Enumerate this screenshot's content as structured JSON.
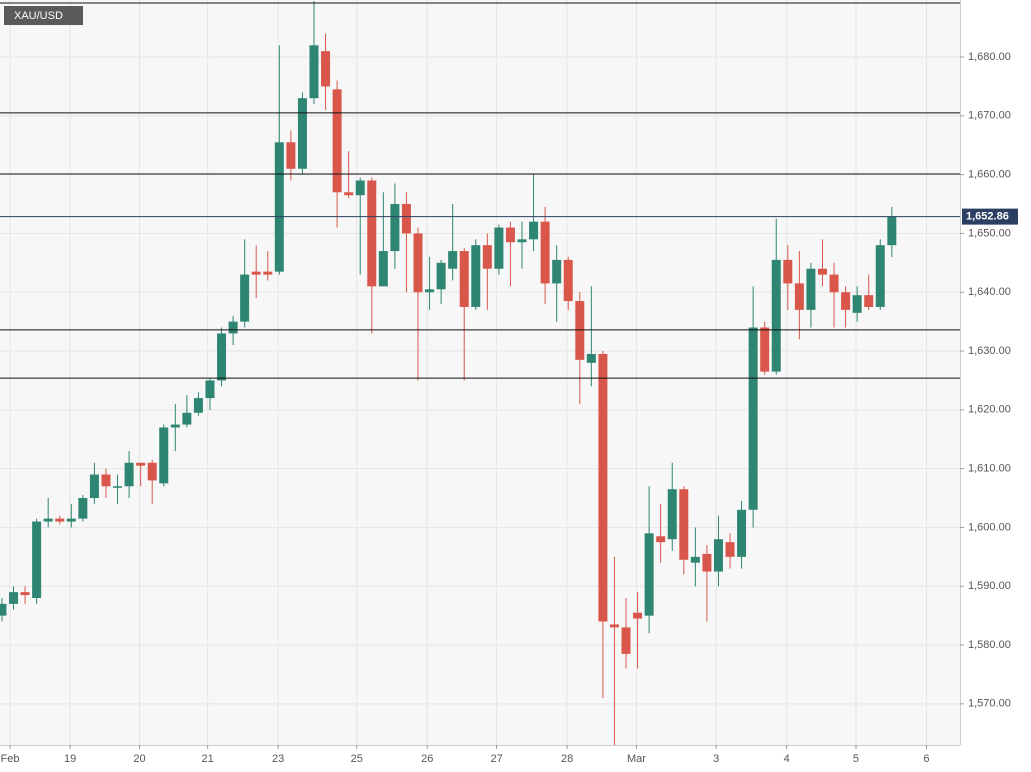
{
  "chart_data": {
    "type": "candlestick",
    "title": "XAU/USD",
    "series": [
      {
        "up_color": "#2e8672",
        "down_color": "#d9574a",
        "open": [
          1585,
          1587,
          1589,
          1588,
          1601,
          1601.5,
          1601,
          1601.5,
          1605,
          1609,
          1607,
          1607,
          1611,
          1611,
          1607.5,
          1617,
          1617.5,
          1619.5,
          1622,
          1625,
          1633,
          1635,
          1643.5,
          1643.5,
          1643.5,
          1665.5,
          1661,
          1673,
          1681,
          1674.5,
          1657,
          1656.5,
          1659,
          1641,
          1647,
          1655,
          1650,
          1640,
          1640.5,
          1644,
          1647,
          1637.5,
          1648,
          1644,
          1651,
          1648.5,
          1649,
          1652,
          1641.5,
          1645.5,
          1638.5,
          1628,
          1629.5,
          1583.5,
          1583,
          1585.5,
          1585,
          1598.5,
          1598,
          1606.5,
          1594,
          1595.5,
          1592.5,
          1597.5,
          1595,
          1603,
          1634,
          1626.5,
          1645.5,
          1641.5,
          1637,
          1644,
          1643,
          1640,
          1636.5,
          1639.5,
          1637.5,
          1648
        ],
        "high": [
          1588,
          1590,
          1590,
          1601.5,
          1605,
          1602,
          1604,
          1605.5,
          1611,
          1610,
          1609,
          1613,
          1611,
          1611.5,
          1617.5,
          1621,
          1622.5,
          1623,
          1625.5,
          1634,
          1636,
          1649,
          1648,
          1647,
          1682,
          1667.5,
          1674,
          1689.5,
          1684,
          1676,
          1664,
          1659.5,
          1659.5,
          1657,
          1658.5,
          1657,
          1651,
          1646,
          1645.5,
          1655,
          1647.5,
          1649,
          1650,
          1651.5,
          1652,
          1652,
          1660,
          1654.5,
          1648,
          1646,
          1640,
          1641,
          1630,
          1595,
          1588,
          1589,
          1607,
          1604,
          1611,
          1607,
          1600,
          1597,
          1602,
          1599,
          1604.5,
          1641,
          1635,
          1652.5,
          1648,
          1647,
          1645,
          1649,
          1645,
          1641,
          1641,
          1643,
          1649,
          1654.5
        ],
        "low": [
          1584,
          1586,
          1587,
          1587,
          1600,
          1600.5,
          1600,
          1601,
          1604,
          1605,
          1604,
          1605,
          1607,
          1604,
          1607,
          1613,
          1617,
          1619,
          1620,
          1624,
          1631,
          1634,
          1639,
          1642,
          1643,
          1659,
          1660,
          1672,
          1671,
          1651,
          1656,
          1643,
          1633,
          1641,
          1644,
          1640,
          1625,
          1637,
          1638,
          1642,
          1625,
          1637,
          1637,
          1643,
          1641,
          1644,
          1647,
          1638,
          1635,
          1637,
          1621,
          1624,
          1571,
          1563,
          1576,
          1576,
          1582,
          1594,
          1596,
          1592,
          1590,
          1584,
          1590,
          1593,
          1593,
          1600,
          1626,
          1626,
          1637,
          1632,
          1634,
          1641,
          1634,
          1634,
          1635,
          1637,
          1637,
          1646
        ],
        "close": [
          1587,
          1589,
          1588.5,
          1601,
          1601.5,
          1601,
          1601.5,
          1605,
          1609,
          1607,
          1607,
          1611,
          1610.5,
          1608,
          1617,
          1617.5,
          1619.5,
          1622,
          1625,
          1633,
          1635,
          1643,
          1643,
          1643,
          1665.5,
          1661,
          1673,
          1682,
          1675,
          1657,
          1656.5,
          1659,
          1641,
          1647,
          1655,
          1650,
          1640,
          1640.5,
          1645,
          1647,
          1637.5,
          1648,
          1644,
          1651,
          1648.5,
          1649,
          1652,
          1641.5,
          1645.5,
          1638.5,
          1628.5,
          1629.5,
          1584,
          1583,
          1578.5,
          1584.5,
          1599,
          1597.5,
          1606.5,
          1594.5,
          1595,
          1592.5,
          1598,
          1595,
          1603,
          1634,
          1626.5,
          1645.5,
          1641.5,
          1637,
          1644,
          1643,
          1640,
          1637,
          1639.5,
          1637.5,
          1648,
          1652.86
        ]
      }
    ],
    "levels": [
      1689.2,
      1670.5,
      1660.1,
      1633.6,
      1625.4
    ],
    "last_price": {
      "value": 1652.86,
      "label": "1,652.86"
    },
    "xlim": [
      -0.17,
      82.9
    ],
    "xticks": [
      {
        "value": 0.7,
        "label": "Feb"
      },
      {
        "value": 5.9,
        "label": "19"
      },
      {
        "value": 11.9,
        "label": "20"
      },
      {
        "value": 17.8,
        "label": "21"
      },
      {
        "value": 23.9,
        "label": "23"
      },
      {
        "value": 30.7,
        "label": "25"
      },
      {
        "value": 36.8,
        "label": "26"
      },
      {
        "value": 42.8,
        "label": "27"
      },
      {
        "value": 48.9,
        "label": "28"
      },
      {
        "value": 54.9,
        "label": "Mar"
      },
      {
        "value": 61.8,
        "label": "3"
      },
      {
        "value": 67.9,
        "label": "4"
      },
      {
        "value": 73.9,
        "label": "5"
      },
      {
        "value": 80.0,
        "label": "6"
      }
    ],
    "ylim": [
      1563,
      1689.7
    ],
    "yticks": [
      {
        "value": 1570,
        "label": "1,570.00"
      },
      {
        "value": 1580,
        "label": "1,580.00"
      },
      {
        "value": 1590,
        "label": "1,590.00"
      },
      {
        "value": 1600,
        "label": "1,600.00"
      },
      {
        "value": 1610,
        "label": "1,610.00"
      },
      {
        "value": 1620,
        "label": "1,620.00"
      },
      {
        "value": 1630,
        "label": "1,630.00"
      },
      {
        "value": 1640,
        "label": "1,640.00"
      },
      {
        "value": 1650,
        "label": "1,650.00"
      },
      {
        "value": 1660,
        "label": "1,660.00"
      },
      {
        "value": 1670,
        "label": "1,670.00"
      },
      {
        "value": 1680,
        "label": "1,680.00"
      }
    ],
    "grid": true
  }
}
